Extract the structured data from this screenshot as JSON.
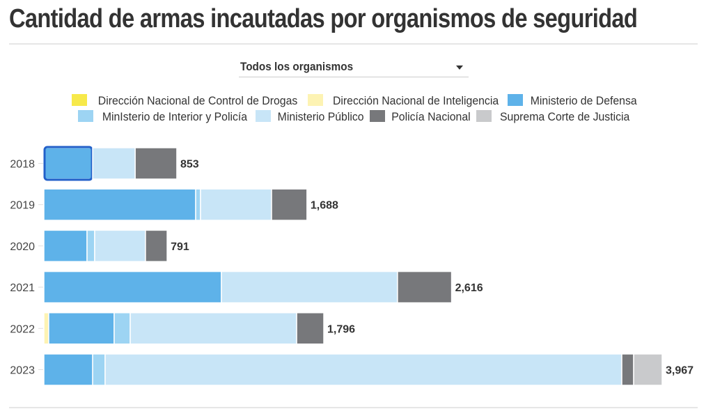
{
  "title": "Cantidad de armas incautadas por organismos de seguridad",
  "filter": {
    "selected": "Todos los organismos",
    "icon": "caret-down-icon"
  },
  "chart_data": {
    "type": "bar",
    "orientation": "horizontal",
    "stacked": true,
    "title": "Cantidad de armas incautadas por organismos de seguridad",
    "categories": [
      "2018",
      "2019",
      "2020",
      "2021",
      "2022",
      "2023"
    ],
    "totals": [
      853,
      1688,
      791,
      2616,
      1796,
      3967
    ],
    "total_labels": [
      "853",
      "1,688",
      "791",
      "2,616",
      "1,796",
      "3,967"
    ],
    "series": [
      {
        "name": "Dirección Nacional de Control de Drogas",
        "color": "#f7e94a",
        "values": [
          0,
          0,
          0,
          0,
          0,
          0
        ]
      },
      {
        "name": "Dirección Nacional de Inteligencia",
        "color": "#fdf3b3",
        "values": [
          0,
          0,
          0,
          0,
          31,
          0
        ]
      },
      {
        "name": "Ministerio de Defensa",
        "color": "#5eb2e9",
        "values": [
          313,
          974,
          277,
          1139,
          420,
          313
        ]
      },
      {
        "name": "MinIsterio de Interior y Policía",
        "color": "#9dd4f3",
        "values": [
          0,
          31,
          49,
          0,
          103,
          80
        ]
      },
      {
        "name": "Ministerio Público",
        "color": "#c8e5f7",
        "values": [
          273,
          456,
          326,
          1130,
          1068,
          3315
        ]
      },
      {
        "name": "Policía Nacional",
        "color": "#77787b",
        "values": [
          267,
          227,
          139,
          347,
          174,
          76
        ]
      },
      {
        "name": "Suprema Corte de Justicia",
        "color": "#c9cacc",
        "values": [
          0,
          0,
          0,
          0,
          0,
          183
        ]
      }
    ],
    "xlim": [
      0,
      3967
    ],
    "grid": false,
    "legend": "top-center",
    "highlighted": {
      "category": "2018",
      "series": "Ministerio de Defensa"
    }
  }
}
